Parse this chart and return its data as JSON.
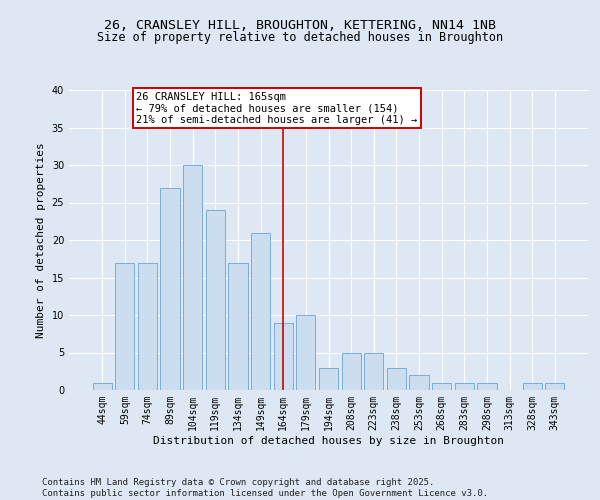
{
  "title_line1": "26, CRANSLEY HILL, BROUGHTON, KETTERING, NN14 1NB",
  "title_line2": "Size of property relative to detached houses in Broughton",
  "xlabel": "Distribution of detached houses by size in Broughton",
  "ylabel": "Number of detached properties",
  "categories": [
    "44sqm",
    "59sqm",
    "74sqm",
    "89sqm",
    "104sqm",
    "119sqm",
    "134sqm",
    "149sqm",
    "164sqm",
    "179sqm",
    "194sqm",
    "208sqm",
    "223sqm",
    "238sqm",
    "253sqm",
    "268sqm",
    "283sqm",
    "298sqm",
    "313sqm",
    "328sqm",
    "343sqm"
  ],
  "values": [
    1,
    17,
    17,
    27,
    30,
    24,
    17,
    21,
    9,
    10,
    3,
    5,
    5,
    3,
    2,
    1,
    1,
    1,
    0,
    1,
    1
  ],
  "bar_color": "#ccddef",
  "bar_edge_color": "#7aadd4",
  "vline_x": 8,
  "vline_color": "#cc0000",
  "annotation_text": "26 CRANSLEY HILL: 165sqm\n← 79% of detached houses are smaller (154)\n21% of semi-detached houses are larger (41) →",
  "annotation_box_color": "#ffffff",
  "annotation_box_edge": "#cc0000",
  "ylim": [
    0,
    40
  ],
  "yticks": [
    0,
    5,
    10,
    15,
    20,
    25,
    30,
    35,
    40
  ],
  "footer_text": "Contains HM Land Registry data © Crown copyright and database right 2025.\nContains public sector information licensed under the Open Government Licence v3.0.",
  "bg_color": "#dde8f4",
  "plot_bg_color": "#dde8f4",
  "grid_color": "#ffffff",
  "title_fontsize": 9.5,
  "subtitle_fontsize": 8.5,
  "axis_label_fontsize": 8,
  "tick_fontsize": 7,
  "footer_fontsize": 6.5,
  "ann_fontsize": 7.5
}
